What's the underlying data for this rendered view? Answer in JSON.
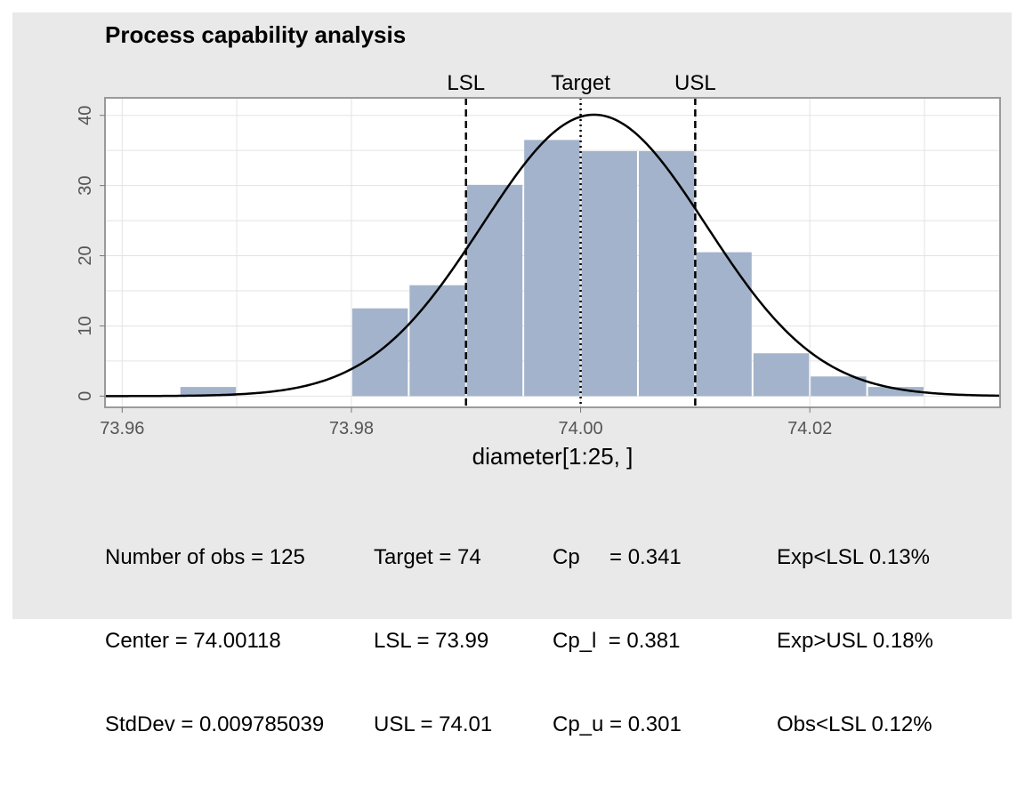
{
  "chart_data": {
    "type": "bar",
    "title": "Process capability analysis",
    "xlabel": "diameter[1:25, ]",
    "ylabel": "",
    "xlim": [
      73.9585,
      74.0366
    ],
    "ylim": [
      -1.6,
      42.5
    ],
    "x_ticks": [
      {
        "value": 73.96,
        "label": "73.96"
      },
      {
        "value": 73.98,
        "label": "73.98"
      },
      {
        "value": 74.0,
        "label": "74.00"
      },
      {
        "value": 74.02,
        "label": "74.02"
      }
    ],
    "y_ticks": [
      {
        "value": 0,
        "label": "0"
      },
      {
        "value": 10,
        "label": "10"
      },
      {
        "value": 20,
        "label": "20"
      },
      {
        "value": 30,
        "label": "30"
      },
      {
        "value": 40,
        "label": "40"
      }
    ],
    "bin_width": 0.005,
    "bins": [
      {
        "start": 73.965,
        "value": 1.3
      },
      {
        "start": 73.97,
        "value": 0
      },
      {
        "start": 73.975,
        "value": 0
      },
      {
        "start": 73.98,
        "value": 12.5
      },
      {
        "start": 73.985,
        "value": 15.8
      },
      {
        "start": 73.99,
        "value": 30.1
      },
      {
        "start": 73.995,
        "value": 36.5
      },
      {
        "start": 74.0,
        "value": 34.9
      },
      {
        "start": 74.005,
        "value": 34.9
      },
      {
        "start": 74.01,
        "value": 20.5
      },
      {
        "start": 74.015,
        "value": 6.1
      },
      {
        "start": 74.02,
        "value": 2.8
      },
      {
        "start": 74.025,
        "value": 1.3
      }
    ],
    "normal_curve": {
      "mean": 74.00118,
      "sd": 0.009785039,
      "scale": 1.0
    },
    "spec_lines": [
      {
        "name": "LSL",
        "value": 73.99,
        "style": "dashed"
      },
      {
        "name": "Target",
        "value": 74.0,
        "style": "dotted"
      },
      {
        "name": "USL",
        "value": 74.01,
        "style": "dashed"
      }
    ],
    "grid": true,
    "colors": {
      "bars": "#a3b3cb",
      "curve": "#000000",
      "panel": "#e9e9e9",
      "plot_bg": "#ffffff"
    }
  },
  "stats": {
    "columns": [
      [
        "Number of obs = 125",
        "Center = 74.00118",
        "StdDev = 0.009785039"
      ],
      [
        "Target = 74",
        "LSL = 73.99",
        "USL = 74.01"
      ],
      [
        "Cp     = 0.341",
        "Cp_l  = 0.381",
        "Cp_u = 0.301"
      ],
      [
        "Exp<LSL 0.13%",
        "Exp>USL 0.18%",
        "Obs<LSL 0.12%"
      ]
    ]
  }
}
